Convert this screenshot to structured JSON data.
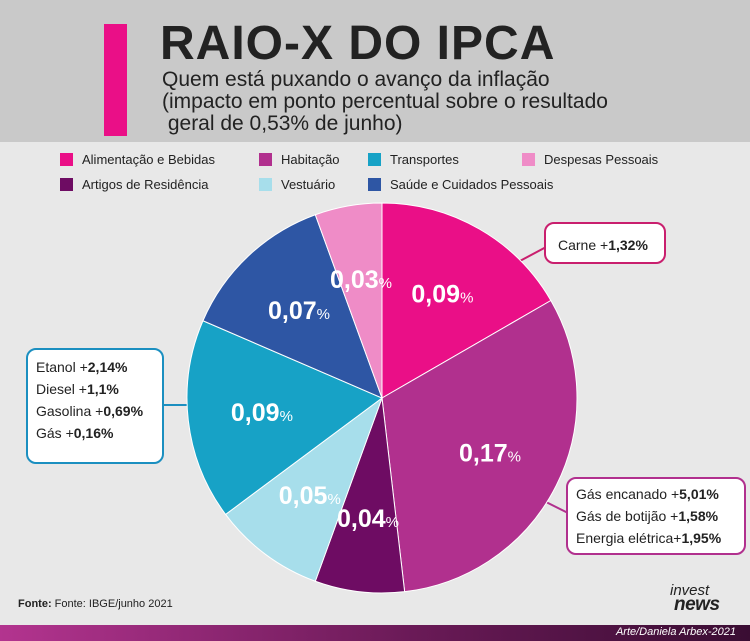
{
  "header": {
    "title": "RAIO-X DO IPCA",
    "subtitle_line1": "Quem está puxando o avanço da inflação",
    "subtitle_line2": "(impacto em ponto percentual sobre o resultado",
    "subtitle_line3": " geral de 0,53% de junho)",
    "accent_color": "#ea0f87"
  },
  "legend": [
    {
      "label": "Alimentação e Bebidas",
      "color": "#ea0f87"
    },
    {
      "label": "Habitação",
      "color": "#b1308e"
    },
    {
      "label": "Transportes",
      "color": "#17a2c6"
    },
    {
      "label": "Despesas Pessoais",
      "color": "#ef8cc7"
    },
    {
      "label": "Artigos de Residência",
      "color": "#6e0c63"
    },
    {
      "label": "Vestuário",
      "color": "#a7deeb"
    },
    {
      "label": "Saúde e Cuidados Pessoais",
      "color": "#2e56a4"
    }
  ],
  "chart_data": {
    "type": "pie",
    "title": "RAIO-X DO IPCA",
    "unit": "%",
    "slices": [
      {
        "category": "Alimentação e Bebidas",
        "value": 0.09,
        "label": "0,09",
        "color": "#ea0f87"
      },
      {
        "category": "Habitação",
        "value": 0.17,
        "label": "0,17",
        "color": "#b1308e"
      },
      {
        "category": "Artigos de Residência",
        "value": 0.04,
        "label": "0,04",
        "color": "#6e0c63"
      },
      {
        "category": "Vestuário",
        "value": 0.05,
        "label": "0,05",
        "color": "#a7deeb"
      },
      {
        "category": "Transportes",
        "value": 0.09,
        "label": "0,09",
        "color": "#17a2c6"
      },
      {
        "category": "Saúde e Cuidados Pessoais",
        "value": 0.07,
        "label": "0,07",
        "color": "#2e56a4"
      },
      {
        "category": "Despesas Pessoais",
        "value": 0.03,
        "label": "0,03",
        "color": "#ef8cc7"
      }
    ]
  },
  "callouts": {
    "carne": {
      "border_color": "#c91f6e",
      "lines": [
        {
          "label": "Carne +",
          "value": "1,32%"
        }
      ]
    },
    "transportes": {
      "border_color": "#1b8fc0",
      "lines": [
        {
          "label": "Etanol +",
          "value": "2,14%"
        },
        {
          "label": "Diesel +",
          "value": "1,1%"
        },
        {
          "label": "Gasolina +",
          "value": "0,69%"
        },
        {
          "label": "Gás +",
          "value": "0,16%"
        }
      ]
    },
    "habitacao": {
      "border_color": "#b1308e",
      "lines": [
        {
          "label": "Gás encanado +",
          "value": "5,01%"
        },
        {
          "label": "Gás de botijão +",
          "value": "1,58%"
        },
        {
          "label": "Energia elétrica+",
          "value": "1,95%"
        }
      ]
    }
  },
  "footer": {
    "source_bold": "Fonte:",
    "source_text": " Fonte: IBGE/junho 2021",
    "logo_line1": "invest",
    "logo_line2": "news",
    "credit": "Arte/Daniela Arbex-2021"
  }
}
